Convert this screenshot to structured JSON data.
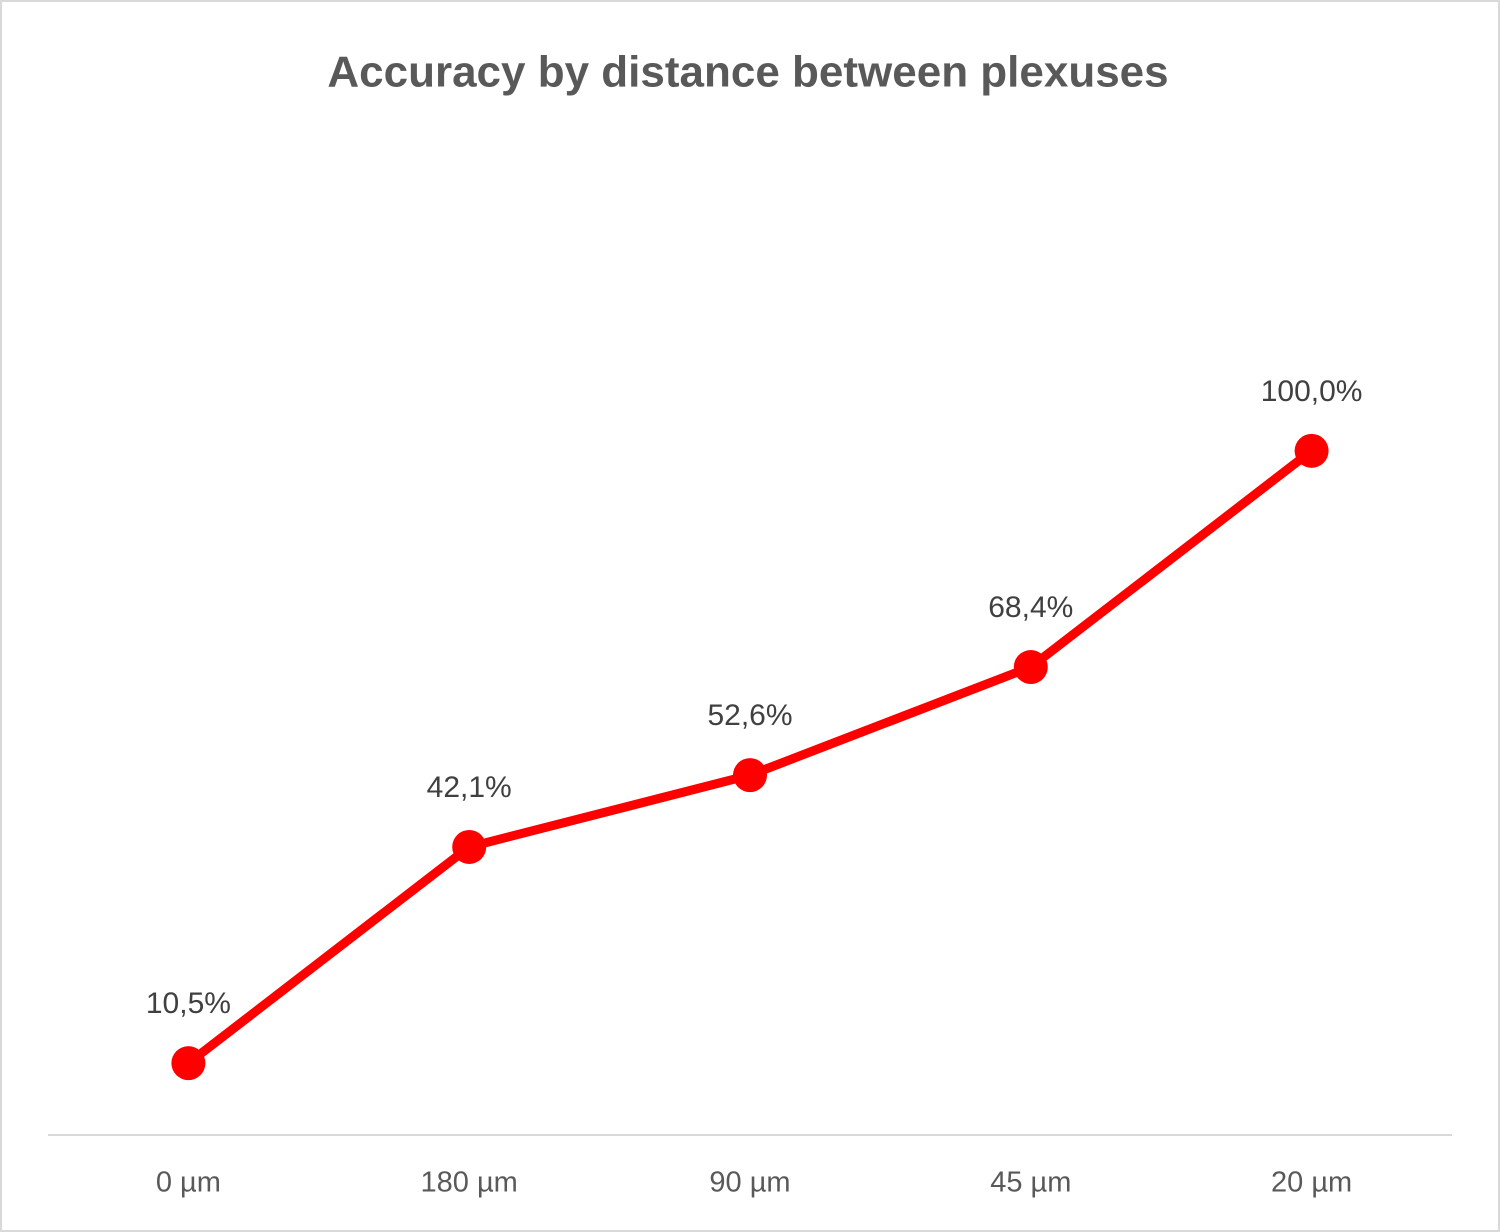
{
  "chart_data": {
    "type": "line",
    "title": "Accuracy by distance between plexuses",
    "categories": [
      "0 µm",
      "180 µm",
      "90 µm",
      "45 µm",
      "20 µm"
    ],
    "values": [
      10.5,
      42.1,
      52.6,
      68.4,
      100.0
    ],
    "value_labels": [
      "10,5%",
      "42,1%",
      "52,6%",
      "68,4%",
      "100,0%"
    ],
    "color": "#ff0000",
    "ylim": [
      0,
      120
    ]
  }
}
